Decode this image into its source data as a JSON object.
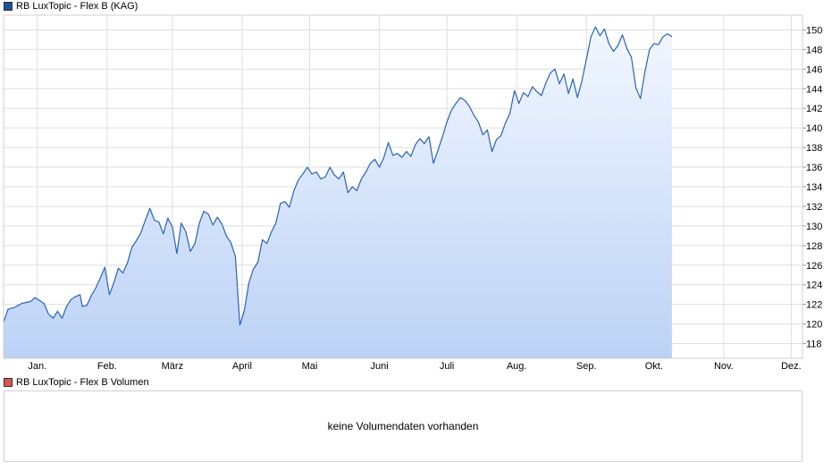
{
  "legend": {
    "price_label": "RB LuxTopic - Flex B (KAG)",
    "price_color": "#2050a0",
    "volume_label": "RB LuxTopic - Flex B Volumen",
    "volume_color": "#d9534f"
  },
  "volume_panel": {
    "message": "keine Volumendaten vorhanden"
  },
  "chart_data": {
    "type": "area",
    "xlabel": "",
    "ylabel": "",
    "ylim": [
      116.5,
      151.5
    ],
    "y_ticks": [
      118,
      120,
      122,
      124,
      126,
      128,
      130,
      132,
      134,
      136,
      138,
      140,
      142,
      144,
      146,
      148,
      150
    ],
    "x_ticks": [
      {
        "label": "Jan.",
        "day": 15
      },
      {
        "label": "Feb.",
        "day": 46
      },
      {
        "label": "März",
        "day": 75
      },
      {
        "label": "April",
        "day": 106
      },
      {
        "label": "Mai",
        "day": 136
      },
      {
        "label": "Juni",
        "day": 167
      },
      {
        "label": "Juli",
        "day": 197
      },
      {
        "label": "Aug.",
        "day": 228
      },
      {
        "label": "Sep.",
        "day": 259
      },
      {
        "label": "Okt.",
        "day": 289
      },
      {
        "label": "Nov.",
        "day": 320
      },
      {
        "label": "Dez.",
        "day": 350
      }
    ],
    "xlim": [
      0,
      355
    ],
    "grid": true,
    "line_color": "#2a62b8",
    "fill_top_color": "#f2f7ff",
    "fill_bottom_color": "#bcd2f5",
    "series": [
      {
        "values": [
          [
            0,
            120.2
          ],
          [
            2,
            121.5
          ],
          [
            5,
            121.7
          ],
          [
            8,
            122.1
          ],
          [
            10,
            122.2
          ],
          [
            12,
            122.3
          ],
          [
            14,
            122.7
          ],
          [
            16,
            122.4
          ],
          [
            18,
            122.1
          ],
          [
            20,
            121.0
          ],
          [
            22,
            120.6
          ],
          [
            24,
            121.3
          ],
          [
            26,
            120.6
          ],
          [
            28,
            121.8
          ],
          [
            30,
            122.5
          ],
          [
            32,
            122.8
          ],
          [
            34,
            123.0
          ],
          [
            35,
            121.8
          ],
          [
            37,
            121.9
          ],
          [
            39,
            122.9
          ],
          [
            41,
            123.7
          ],
          [
            43,
            124.7
          ],
          [
            45,
            125.8
          ],
          [
            47,
            123.0
          ],
          [
            49,
            124.2
          ],
          [
            51,
            125.7
          ],
          [
            53,
            125.2
          ],
          [
            55,
            126.2
          ],
          [
            57,
            127.8
          ],
          [
            59,
            128.5
          ],
          [
            61,
            129.3
          ],
          [
            63,
            130.6
          ],
          [
            65,
            131.8
          ],
          [
            67,
            130.6
          ],
          [
            69,
            130.4
          ],
          [
            71,
            129.2
          ],
          [
            73,
            130.8
          ],
          [
            75,
            129.9
          ],
          [
            77,
            127.2
          ],
          [
            79,
            130.3
          ],
          [
            81,
            129.4
          ],
          [
            83,
            127.4
          ],
          [
            85,
            128.2
          ],
          [
            87,
            130.3
          ],
          [
            89,
            131.5
          ],
          [
            91,
            131.2
          ],
          [
            93,
            130.1
          ],
          [
            95,
            130.9
          ],
          [
            97,
            130.2
          ],
          [
            99,
            129.0
          ],
          [
            101,
            128.3
          ],
          [
            103,
            126.9
          ],
          [
            105,
            119.9
          ],
          [
            107,
            121.4
          ],
          [
            109,
            124.2
          ],
          [
            111,
            125.6
          ],
          [
            113,
            126.3
          ],
          [
            115,
            128.6
          ],
          [
            117,
            128.2
          ],
          [
            119,
            129.4
          ],
          [
            121,
            130.3
          ],
          [
            123,
            132.3
          ],
          [
            125,
            132.5
          ],
          [
            127,
            131.9
          ],
          [
            129,
            133.6
          ],
          [
            131,
            134.7
          ],
          [
            133,
            135.3
          ],
          [
            135,
            136.0
          ],
          [
            137,
            135.3
          ],
          [
            139,
            135.5
          ],
          [
            141,
            134.8
          ],
          [
            143,
            135.0
          ],
          [
            145,
            136.0
          ],
          [
            147,
            135.2
          ],
          [
            149,
            134.8
          ],
          [
            151,
            135.5
          ],
          [
            153,
            133.4
          ],
          [
            155,
            134.0
          ],
          [
            157,
            133.6
          ],
          [
            159,
            134.8
          ],
          [
            161,
            135.5
          ],
          [
            163,
            136.4
          ],
          [
            165,
            136.8
          ],
          [
            167,
            136.0
          ],
          [
            169,
            137.0
          ],
          [
            171,
            138.5
          ],
          [
            173,
            137.2
          ],
          [
            175,
            137.4
          ],
          [
            177,
            137.0
          ],
          [
            179,
            137.6
          ],
          [
            181,
            137.1
          ],
          [
            183,
            138.3
          ],
          [
            185,
            138.9
          ],
          [
            187,
            138.4
          ],
          [
            189,
            139.1
          ],
          [
            191,
            136.4
          ],
          [
            193,
            137.7
          ],
          [
            195,
            139.1
          ],
          [
            197,
            140.6
          ],
          [
            199,
            141.8
          ],
          [
            201,
            142.5
          ],
          [
            203,
            143.1
          ],
          [
            205,
            142.8
          ],
          [
            207,
            142.2
          ],
          [
            209,
            141.3
          ],
          [
            211,
            140.6
          ],
          [
            213,
            139.3
          ],
          [
            215,
            139.8
          ],
          [
            217,
            137.6
          ],
          [
            219,
            138.8
          ],
          [
            221,
            139.2
          ],
          [
            223,
            140.5
          ],
          [
            225,
            141.5
          ],
          [
            227,
            143.8
          ],
          [
            229,
            142.5
          ],
          [
            231,
            143.6
          ],
          [
            233,
            143.2
          ],
          [
            235,
            144.2
          ],
          [
            237,
            143.7
          ],
          [
            239,
            143.3
          ],
          [
            241,
            144.6
          ],
          [
            243,
            145.6
          ],
          [
            245,
            146.0
          ],
          [
            247,
            144.5
          ],
          [
            249,
            145.5
          ],
          [
            251,
            143.5
          ],
          [
            253,
            145.0
          ],
          [
            255,
            143.1
          ],
          [
            257,
            144.8
          ],
          [
            259,
            147.0
          ],
          [
            261,
            149.3
          ],
          [
            263,
            150.3
          ],
          [
            265,
            149.4
          ],
          [
            267,
            150.1
          ],
          [
            269,
            148.6
          ],
          [
            271,
            147.8
          ],
          [
            273,
            148.4
          ],
          [
            275,
            149.5
          ],
          [
            277,
            148.1
          ],
          [
            279,
            147.2
          ],
          [
            281,
            144.1
          ],
          [
            283,
            143.0
          ],
          [
            285,
            145.7
          ],
          [
            287,
            148.0
          ],
          [
            289,
            148.6
          ],
          [
            291,
            148.5
          ],
          [
            293,
            149.3
          ],
          [
            295,
            149.6
          ],
          [
            297,
            149.3
          ]
        ]
      }
    ]
  }
}
